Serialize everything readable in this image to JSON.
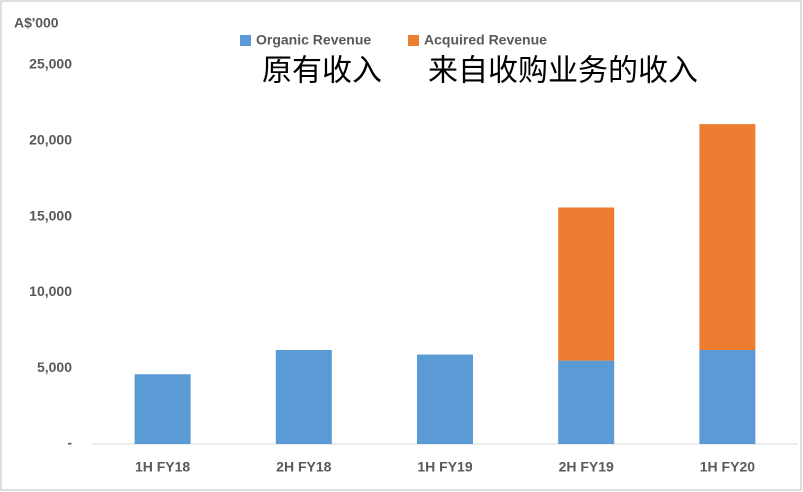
{
  "chart_data": {
    "type": "stacked_bar",
    "y_axis_label": "A$'000",
    "annotations": [
      "原有收入",
      "来自收购业务的收入"
    ],
    "categories": [
      "1H FY18",
      "2H FY18",
      "1H FY19",
      "2H FY19",
      "1H FY20"
    ],
    "series": [
      {
        "name": "Organic Revenue",
        "color": "#5b9bd5",
        "values": [
          4600,
          6200,
          5900,
          5500,
          6200
        ]
      },
      {
        "name": "Acquired Revenue",
        "color": "#ed7d31",
        "values": [
          null,
          null,
          null,
          10100,
          14900
        ]
      }
    ],
    "ylim": [
      0,
      25000
    ],
    "yticks": [
      {
        "value": 0,
        "label": "-"
      },
      {
        "value": 5000,
        "label": "5,000"
      },
      {
        "value": 10000,
        "label": "10,000"
      },
      {
        "value": 15000,
        "label": "15,000"
      },
      {
        "value": 20000,
        "label": "20,000"
      },
      {
        "value": 25000,
        "label": "25,000"
      }
    ],
    "legend": "top"
  }
}
